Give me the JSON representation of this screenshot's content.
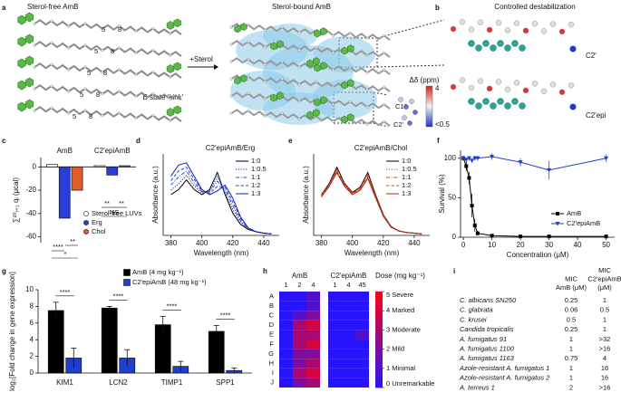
{
  "panel_labels": [
    "a",
    "b",
    "c",
    "d",
    "e",
    "f",
    "g",
    "h",
    "i"
  ],
  "panel_a": {
    "left_title": "Sterol-free AmB",
    "right_title": "Sterol-bound AmB",
    "arrow_label": "+Sterol",
    "kink_label": "B state ‘kink’",
    "position_labels": [
      "5",
      "8",
      "5",
      "8",
      "5",
      "8",
      "5",
      "8",
      "5",
      "8"
    ],
    "scale_title": "Δδ (ppm)",
    "scale_max": "4",
    "scale_min": "<0.5",
    "atom_labels": [
      "C19",
      "C2′"
    ]
  },
  "panel_b": {
    "title": "Controlled destabilization",
    "labels": [
      "C2′",
      "C2′epi"
    ]
  },
  "chart_data": [
    {
      "type": "bar",
      "ylabel": "∑²⁰ᵢ₌₁ qᵢ (μcal)",
      "categories": [
        "AmB",
        "C2′epiAmB"
      ],
      "series": [
        {
          "name": "Sterol-free LUVs",
          "color": "#ffffff",
          "values": [
            2,
            1
          ]
        },
        {
          "name": "Erg",
          "color": "#2a3fd8",
          "values": [
            -44,
            -7
          ]
        },
        {
          "name": "Chol",
          "color": "#e05a2a",
          "values": [
            -20,
            1
          ]
        }
      ],
      "ylim": [
        -65,
        8
      ],
      "yticks": [
        0,
        -20,
        -40,
        -60
      ],
      "annotations": [
        "****",
        "**",
        "*",
        "**",
        "**",
        "NS"
      ],
      "legend": "lower right",
      "legend_marker": "circle"
    },
    {
      "type": "line",
      "title": "C2′epiAmB/Erg",
      "xlabel": "Wavelength (nm)",
      "ylabel": "Absorbance (a.u.)",
      "x": [
        380,
        385,
        390,
        395,
        400,
        405,
        410,
        415,
        420,
        425,
        430,
        435,
        440,
        445
      ],
      "series": [
        {
          "name": "1:0",
          "color": "#000000",
          "dash": "solid",
          "values": [
            0.55,
            0.62,
            0.75,
            0.62,
            0.55,
            0.62,
            0.85,
            0.55,
            0.3,
            0.15,
            0.08,
            0.05,
            0.03,
            0.02
          ]
        },
        {
          "name": "1:0.5",
          "color": "#1a1aa0",
          "dash": "dotted",
          "values": [
            0.61,
            0.7,
            0.81,
            0.67,
            0.57,
            0.6,
            0.79,
            0.58,
            0.35,
            0.18,
            0.09,
            0.05,
            0.03,
            0.02
          ]
        },
        {
          "name": "1:1",
          "color": "#2a4ae0",
          "dash": "dashdot",
          "values": [
            0.68,
            0.79,
            0.87,
            0.71,
            0.59,
            0.59,
            0.73,
            0.62,
            0.4,
            0.2,
            0.09,
            0.05,
            0.03,
            0.02
          ]
        },
        {
          "name": "1:2",
          "color": "#1f3fd0",
          "dash": "dashed",
          "values": [
            0.74,
            0.87,
            0.92,
            0.76,
            0.6,
            0.57,
            0.66,
            0.65,
            0.45,
            0.23,
            0.1,
            0.05,
            0.03,
            0.02
          ]
        },
        {
          "name": "1:3",
          "color": "#1020b0",
          "dash": "solid",
          "values": [
            0.8,
            0.95,
            0.98,
            0.8,
            0.62,
            0.55,
            0.6,
            0.68,
            0.5,
            0.25,
            0.1,
            0.05,
            0.03,
            0.02
          ]
        }
      ],
      "xlim": [
        375,
        450
      ],
      "xticks": [
        380,
        400,
        420,
        440
      ],
      "ylim": [
        0,
        1.1
      ],
      "legend": "upper right"
    },
    {
      "type": "line",
      "title": "C2′epiAmB/Chol",
      "xlabel": "Wavelength (nm)",
      "ylabel": "Absorbance (a.u.)",
      "x": [
        380,
        385,
        390,
        395,
        400,
        405,
        410,
        415,
        420,
        425,
        430,
        435,
        440,
        445
      ],
      "series": [
        {
          "name": "1:0",
          "color": "#000000",
          "dash": "solid",
          "values": [
            0.55,
            0.7,
            0.92,
            0.7,
            0.58,
            0.65,
            0.85,
            0.55,
            0.28,
            0.12,
            0.06,
            0.04,
            0.03,
            0.02
          ]
        },
        {
          "name": "1:0.5",
          "color": "#c0392b",
          "dash": "dotted",
          "values": [
            0.55,
            0.69,
            0.9,
            0.69,
            0.57,
            0.64,
            0.83,
            0.54,
            0.28,
            0.12,
            0.06,
            0.04,
            0.03,
            0.02
          ]
        },
        {
          "name": "1:1",
          "color": "#d04020",
          "dash": "dashdot",
          "values": [
            0.54,
            0.68,
            0.89,
            0.68,
            0.57,
            0.63,
            0.81,
            0.53,
            0.27,
            0.12,
            0.06,
            0.04,
            0.03,
            0.02
          ]
        },
        {
          "name": "1:2",
          "color": "#e04a2a",
          "dash": "dashed",
          "values": [
            0.53,
            0.67,
            0.87,
            0.67,
            0.56,
            0.62,
            0.79,
            0.52,
            0.27,
            0.11,
            0.06,
            0.04,
            0.03,
            0.02
          ]
        },
        {
          "name": "1:3",
          "color": "#b02010",
          "dash": "solid",
          "values": [
            0.52,
            0.66,
            0.85,
            0.66,
            0.55,
            0.61,
            0.77,
            0.51,
            0.26,
            0.11,
            0.06,
            0.04,
            0.03,
            0.02
          ]
        }
      ],
      "xlim": [
        375,
        450
      ],
      "xticks": [
        380,
        400,
        420,
        440
      ],
      "ylim": [
        0,
        1.1
      ],
      "legend": "upper right"
    },
    {
      "type": "line",
      "xlabel": "Concentration (μM)",
      "ylabel": "Survival (%)",
      "x": [
        0,
        1,
        2,
        3,
        4,
        5,
        10,
        20,
        30,
        50
      ],
      "series": [
        {
          "name": "AmB",
          "color": "#000000",
          "dash": "solid",
          "marker": "square",
          "values": [
            100,
            90,
            75,
            40,
            15,
            5,
            2,
            1,
            1,
            1
          ],
          "errors": [
            3,
            6,
            8,
            15,
            8,
            3,
            1,
            1,
            1,
            1
          ]
        },
        {
          "name": "C2′epiAmB",
          "color": "#1f3fd0",
          "dash": "solid",
          "marker": "triangle",
          "values": [
            100,
            98,
            100,
            97,
            100,
            100,
            102,
            95,
            85,
            100
          ],
          "errors": [
            2,
            3,
            3,
            3,
            3,
            3,
            4,
            5,
            12,
            5
          ]
        }
      ],
      "xlim": [
        -1,
        53
      ],
      "xticks": [
        0,
        10,
        20,
        30,
        40,
        50
      ],
      "ylim": [
        0,
        110
      ],
      "yticks": [
        0,
        50,
        100
      ],
      "legend": "center right"
    },
    {
      "type": "bar",
      "ylabel": "log₂[Fold change in gene expression]",
      "categories": [
        "KIM1",
        "LCN2",
        "TIMP1",
        "SPP1"
      ],
      "series": [
        {
          "name": "AmB (4 mg kg⁻¹)",
          "color": "#000000",
          "values": [
            7.5,
            7.8,
            5.8,
            5.0
          ],
          "errors": [
            1.0,
            0.2,
            1.0,
            0.7
          ]
        },
        {
          "name": "C2′epiAmB (48 mg kg⁻¹)",
          "color": "#1f3fd0",
          "values": [
            1.8,
            1.8,
            0.8,
            0.3
          ],
          "errors": [
            1.2,
            1.0,
            0.6,
            0.3
          ]
        }
      ],
      "ylim": [
        0,
        10
      ],
      "yticks": [
        0,
        2,
        4,
        6,
        8,
        10
      ],
      "annotations": [
        "****",
        "****",
        "****",
        "****"
      ],
      "legend": "upper center",
      "legend_marker": "square"
    },
    {
      "type": "heatmap",
      "rows": [
        "A",
        "B",
        "C",
        "D",
        "E",
        "F",
        "G",
        "H",
        "I",
        "J"
      ],
      "groups": [
        {
          "name": "AmB",
          "columns": [
            "1",
            "2",
            "4"
          ],
          "values": [
            [
              0,
              0,
              1
            ],
            [
              0,
              0,
              1
            ],
            [
              0,
              1,
              2
            ],
            [
              0,
              3,
              4
            ],
            [
              0,
              3,
              3
            ],
            [
              0,
              3,
              4
            ],
            [
              0,
              2,
              2
            ],
            [
              0,
              2,
              3
            ],
            [
              0,
              3,
              4
            ],
            [
              0,
              2,
              3
            ]
          ]
        },
        {
          "name": "C2′epiAmB",
          "columns": [
            "1",
            "4",
            "45"
          ],
          "values": [
            [
              0,
              0,
              0
            ],
            [
              0,
              0,
              0
            ],
            [
              0,
              0,
              0
            ],
            [
              0,
              0,
              0
            ],
            [
              0,
              0,
              1
            ],
            [
              0,
              0,
              0
            ],
            [
              0,
              0,
              0
            ],
            [
              0,
              0,
              0
            ],
            [
              0,
              0,
              0
            ],
            [
              0,
              0,
              0
            ]
          ]
        }
      ],
      "zlim": [
        0,
        5
      ],
      "colorbar_title": "Dose (mg kg⁻¹)",
      "colorbar_ticks": [
        {
          "value": 5,
          "label": "5 Severe"
        },
        {
          "value": 4,
          "label": "4 Marked"
        },
        {
          "value": 3,
          "label": "3 Moderate"
        },
        {
          "value": 2,
          "label": "2 Mild"
        },
        {
          "value": 1,
          "label": "1 Minimal"
        },
        {
          "value": 0,
          "label": "0 Unremarkable"
        }
      ]
    }
  ],
  "table": {
    "headers": [
      [
        "MIC",
        "AmB (μM)"
      ],
      [
        "MIC",
        "C2′epiAmB",
        "(μM)"
      ]
    ],
    "rows": [
      [
        "C. albicans SN250",
        "0.25",
        "1"
      ],
      [
        "C. glabrata",
        "0.06",
        "0.5"
      ],
      [
        "C. krusei",
        "0.5",
        "1"
      ],
      [
        "Candida tropicalis",
        "0.25",
        "1"
      ],
      [
        "A. fumigatus 91",
        "1",
        ">32"
      ],
      [
        "A. fumigatus 1100",
        "1",
        ">16"
      ],
      [
        "A. fumigatus 1163",
        "0.75",
        "4"
      ],
      [
        "Azole-resistant A. fumigatus 1",
        "1",
        "16"
      ],
      [
        "Azole-resistant A. fumigatus 2",
        "1",
        "16"
      ],
      [
        "A. terreus 1",
        "2",
        ">16"
      ]
    ]
  }
}
